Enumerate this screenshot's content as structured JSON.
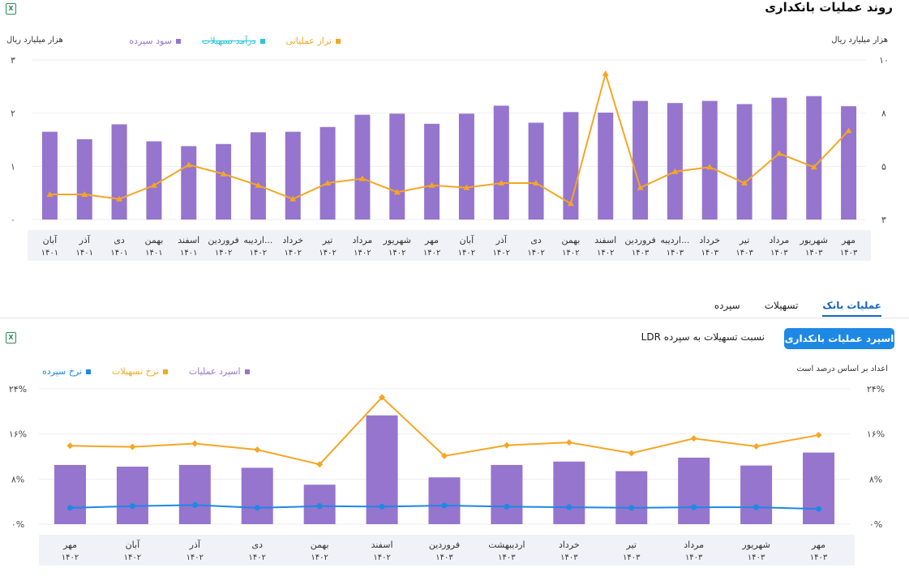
{
  "page": {
    "title": "روند عملیات بانکداری",
    "tabs": [
      {
        "label": "سپرده"
      },
      {
        "label": "تسهیلات"
      },
      {
        "label": "عملیات بانک",
        "active": true
      }
    ],
    "sub_buttons": {
      "active": "اسپرد عملیات بانکداری",
      "other": "نسبت تسهیلات به سپرده LDR"
    },
    "colors": {
      "purple": "#9575cd",
      "orange": "#f5a623",
      "blue": "#1e88e5",
      "teal": "#26c6da",
      "accent": "#1565c0"
    }
  },
  "chart_data": [
    {
      "type": "bar",
      "title": "",
      "left_unit": "هزار میلیارد ریال",
      "right_unit": "هزار میلیارد ریال",
      "legend": [
        {
          "name": "سود سپرده",
          "color": "#9575cd"
        },
        {
          "name": "درآمد تسهیلات",
          "color": "#26c6da",
          "struck": true
        },
        {
          "name": "تراز عملیاتی",
          "color": "#f5a623"
        }
      ],
      "left_axis": {
        "ticks": [
          "۳",
          "۲",
          "۱",
          "۰"
        ],
        "values": [
          3,
          2,
          1,
          0
        ],
        "ylim": [
          0,
          3
        ]
      },
      "right_axis": {
        "ticks": [
          "۱۰",
          "۸",
          "۵",
          "۳"
        ],
        "ylim": [
          3,
          10
        ]
      },
      "categories": [
        {
          "month": "آبان",
          "year": "۱۴۰۱"
        },
        {
          "month": "آذر",
          "year": "۱۴۰۱"
        },
        {
          "month": "دی",
          "year": "۱۴۰۱"
        },
        {
          "month": "بهمن",
          "year": "۱۴۰۱"
        },
        {
          "month": "اسفند",
          "year": "۱۴۰۱"
        },
        {
          "month": "فروردین",
          "year": "۱۴۰۲"
        },
        {
          "month": "اردیبه...",
          "year": "۱۴۰۲"
        },
        {
          "month": "خرداد",
          "year": "۱۴۰۲"
        },
        {
          "month": "تیر",
          "year": "۱۴۰۲"
        },
        {
          "month": "مرداد",
          "year": "۱۴۰۲"
        },
        {
          "month": "شهریور",
          "year": "۱۴۰۲"
        },
        {
          "month": "مهر",
          "year": "۱۴۰۲"
        },
        {
          "month": "آبان",
          "year": "۱۴۰۲"
        },
        {
          "month": "آذر",
          "year": "۱۴۰۲"
        },
        {
          "month": "دی",
          "year": "۱۴۰۲"
        },
        {
          "month": "بهمن",
          "year": "۱۴۰۲"
        },
        {
          "month": "اسفند",
          "year": "۱۴۰۲"
        },
        {
          "month": "فروردین",
          "year": "۱۴۰۳"
        },
        {
          "month": "اردیبه...",
          "year": "۱۴۰۳"
        },
        {
          "month": "خرداد",
          "year": "۱۴۰۳"
        },
        {
          "month": "تیر",
          "year": "۱۴۰۳"
        },
        {
          "month": "مرداد",
          "year": "۱۴۰۳"
        },
        {
          "month": "شهریور",
          "year": "۱۴۰۳"
        },
        {
          "month": "مهر",
          "year": "۱۴۰۳"
        }
      ],
      "series": [
        {
          "name": "سود سپرده",
          "kind": "bar",
          "axis": "left",
          "values": [
            1.65,
            1.51,
            1.79,
            1.47,
            1.38,
            1.42,
            1.64,
            1.65,
            1.74,
            1.97,
            1.99,
            1.8,
            1.99,
            2.14,
            1.82,
            2.02,
            2.01,
            2.23,
            2.19,
            2.23,
            2.17,
            2.29,
            2.32,
            2.13
          ]
        },
        {
          "name": "تراز عملیاتی",
          "kind": "line",
          "axis": "right",
          "values": [
            4.1,
            4.1,
            3.9,
            4.5,
            5.4,
            5.0,
            4.5,
            3.9,
            4.6,
            4.8,
            4.2,
            4.5,
            4.4,
            4.6,
            4.6,
            3.7,
            9.4,
            4.4,
            5.1,
            5.3,
            4.6,
            5.9,
            5.3,
            6.9
          ]
        }
      ]
    },
    {
      "type": "bar",
      "title": "",
      "note": "اعداد بر اساس درصد است",
      "legend": [
        {
          "name": "اسپرد عملیات",
          "color": "#9575cd"
        },
        {
          "name": "نرخ تسهیلات",
          "color": "#f5a623"
        },
        {
          "name": "نرخ سپرده",
          "color": "#1e88e5"
        }
      ],
      "axis": {
        "ticks": [
          "۲۴%",
          "۱۶%",
          "۸%",
          "۰%"
        ],
        "values": [
          24,
          16,
          8,
          0
        ],
        "ylim": [
          0,
          24
        ]
      },
      "categories": [
        {
          "month": "مهر",
          "year": "۱۴۰۲"
        },
        {
          "month": "آبان",
          "year": "۱۴۰۲"
        },
        {
          "month": "آذر",
          "year": "۱۴۰۲"
        },
        {
          "month": "دی",
          "year": "۱۴۰۲"
        },
        {
          "month": "بهمن",
          "year": "۱۴۰۲"
        },
        {
          "month": "اسفند",
          "year": "۱۴۰۲"
        },
        {
          "month": "فروردین",
          "year": "۱۴۰۳"
        },
        {
          "month": "اردیبهشت",
          "year": "۱۴۰۳"
        },
        {
          "month": "خرداد",
          "year": "۱۴۰۳"
        },
        {
          "month": "تیر",
          "year": "۱۴۰۳"
        },
        {
          "month": "مرداد",
          "year": "۱۴۰۳"
        },
        {
          "month": "شهریور",
          "year": "۱۴۰۳"
        },
        {
          "month": "مهر",
          "year": "۱۴۰۳"
        }
      ],
      "series": [
        {
          "name": "اسپرد عملیات",
          "kind": "bar",
          "values": [
            10.5,
            10.2,
            10.5,
            10.0,
            7.0,
            19.3,
            8.3,
            10.5,
            11.1,
            9.4,
            11.8,
            10.4,
            12.7
          ]
        },
        {
          "name": "نرخ تسهیلات",
          "kind": "line",
          "values": [
            13.9,
            13.7,
            14.3,
            13.2,
            10.6,
            22.5,
            12.1,
            14.0,
            14.5,
            12.6,
            15.2,
            13.8,
            15.8
          ]
        },
        {
          "name": "نرخ سپرده",
          "kind": "line",
          "values": [
            2.9,
            3.2,
            3.4,
            2.9,
            3.2,
            3.1,
            3.3,
            3.1,
            3.0,
            2.9,
            3.0,
            3.0,
            2.7
          ]
        }
      ]
    }
  ]
}
